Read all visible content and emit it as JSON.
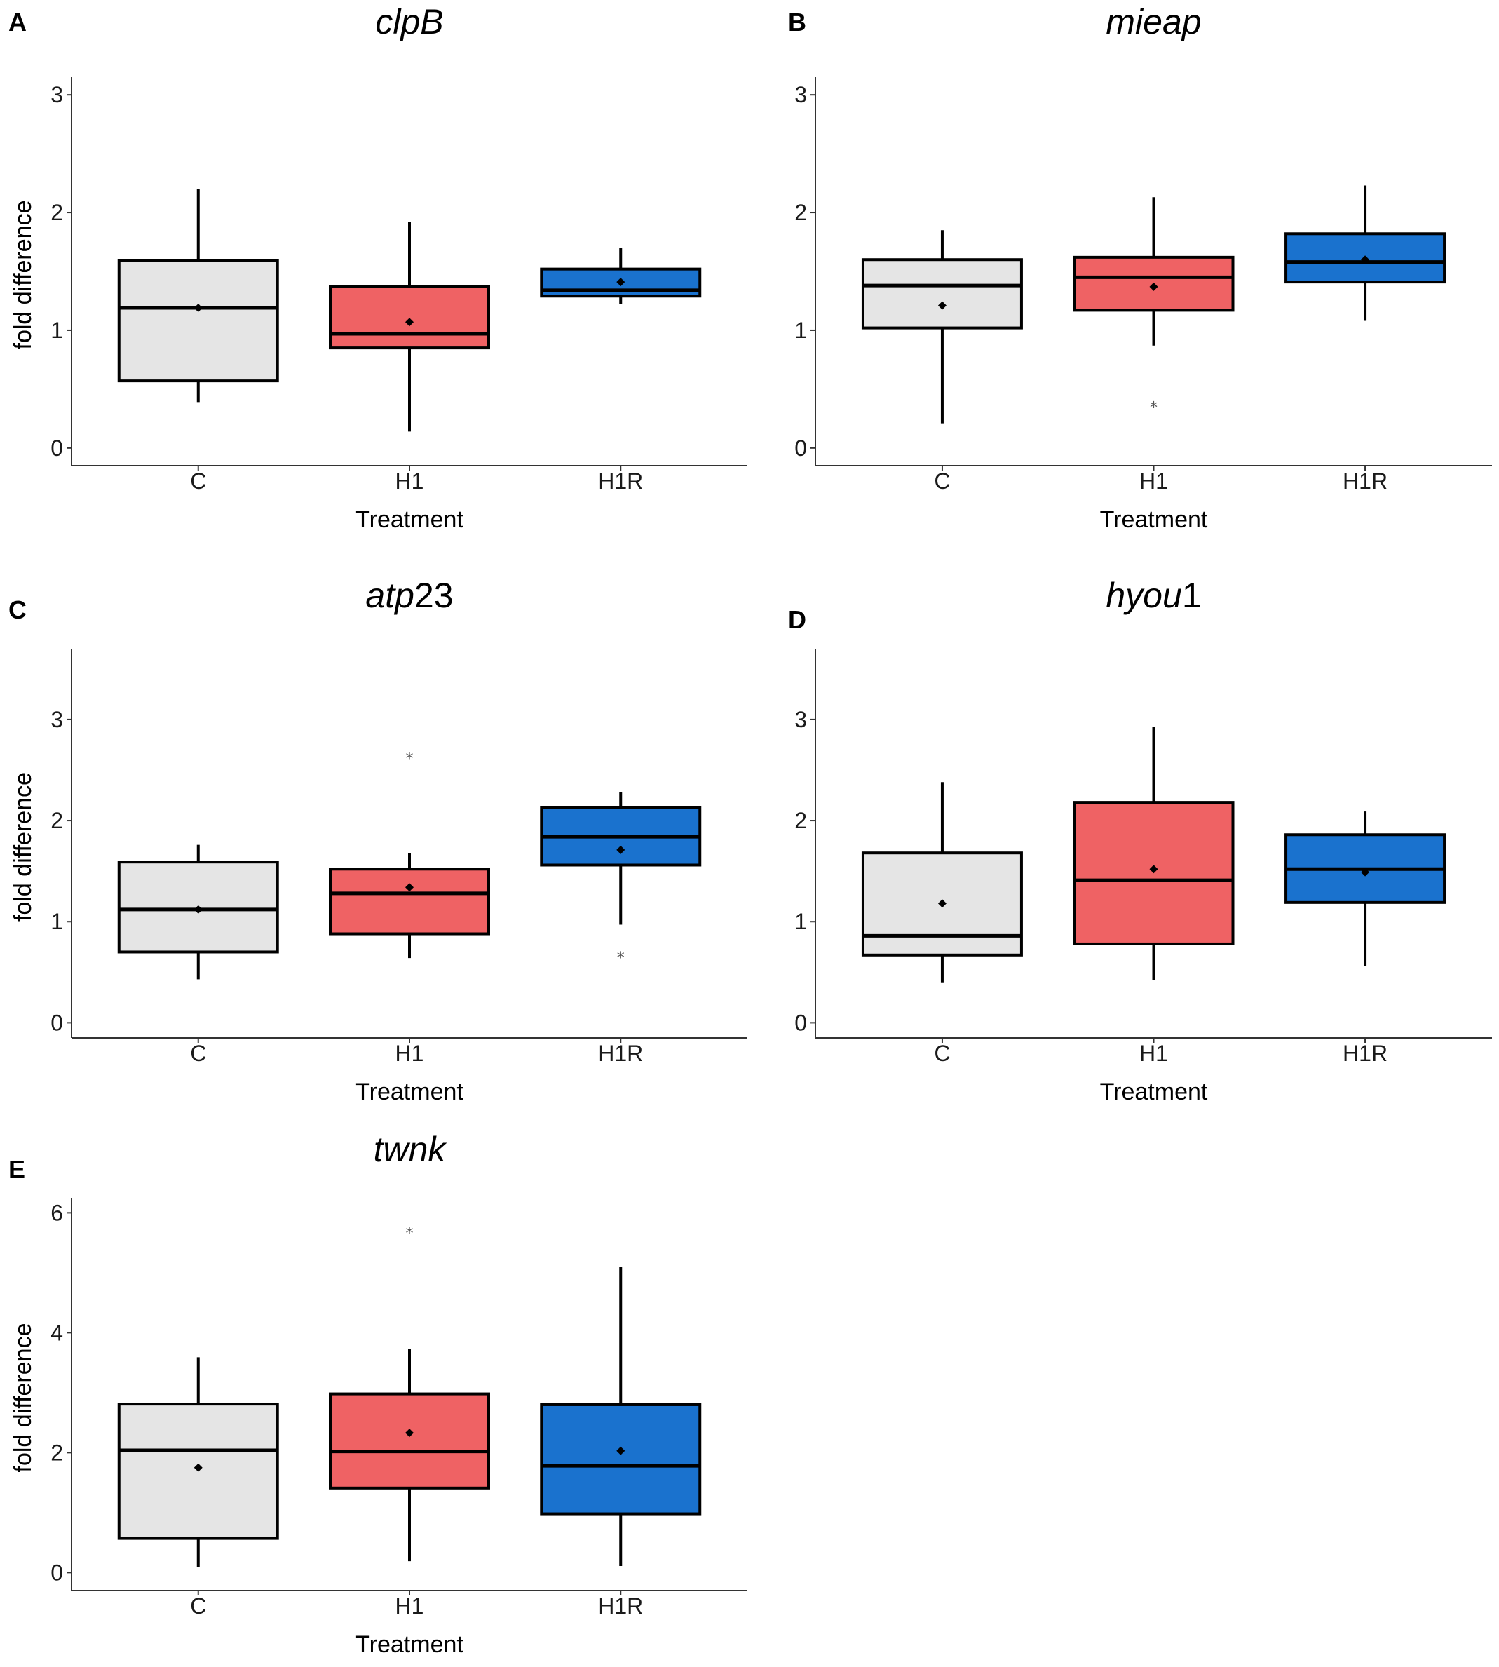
{
  "colors": {
    "C": "#e5e5e5",
    "H1": "#ef6264",
    "H1R": "#1a72ce"
  },
  "chart_data": [
    {
      "type": "boxplot",
      "panel": "A",
      "title": "clpB",
      "title_suffix": "",
      "xlabel": "Treatment",
      "ylabel": "fold difference",
      "ylim": [
        -0.15,
        3.15
      ],
      "yticks": [
        0,
        1,
        2,
        3
      ],
      "categories": [
        "C",
        "H1",
        "H1R"
      ],
      "boxes": [
        {
          "group": "C",
          "whisker_low": 0.39,
          "q1": 0.57,
          "median": 1.19,
          "q3": 1.59,
          "whisker_high": 2.2,
          "mean": 1.19,
          "outliers": []
        },
        {
          "group": "H1",
          "whisker_low": 0.14,
          "q1": 0.85,
          "median": 0.97,
          "q3": 1.37,
          "whisker_high": 1.92,
          "mean": 1.07,
          "outliers": []
        },
        {
          "group": "H1R",
          "whisker_low": 1.22,
          "q1": 1.29,
          "median": 1.34,
          "q3": 1.52,
          "whisker_high": 1.7,
          "mean": 1.41,
          "outliers": []
        }
      ]
    },
    {
      "type": "boxplot",
      "panel": "B",
      "title": "mieap",
      "title_suffix": "",
      "xlabel": "Treatment",
      "ylabel": "fold difference",
      "ylim": [
        -0.15,
        3.15
      ],
      "yticks": [
        0,
        1,
        2,
        3
      ],
      "categories": [
        "C",
        "H1",
        "H1R"
      ],
      "boxes": [
        {
          "group": "C",
          "whisker_low": 0.21,
          "q1": 1.02,
          "median": 1.38,
          "q3": 1.6,
          "whisker_high": 1.85,
          "mean": 1.21,
          "outliers": []
        },
        {
          "group": "H1",
          "whisker_low": 0.87,
          "q1": 1.17,
          "median": 1.45,
          "q3": 1.62,
          "whisker_high": 2.13,
          "mean": 1.37,
          "outliers": [
            0.36
          ]
        },
        {
          "group": "H1R",
          "whisker_low": 1.08,
          "q1": 1.41,
          "median": 1.58,
          "q3": 1.82,
          "whisker_high": 2.23,
          "mean": 1.6,
          "outliers": []
        }
      ]
    },
    {
      "type": "boxplot",
      "panel": "C",
      "title": "atp",
      "title_suffix": "23",
      "xlabel": "Treatment",
      "ylabel": "fold difference",
      "ylim": [
        -0.15,
        3.7
      ],
      "yticks": [
        0,
        1,
        2,
        3
      ],
      "categories": [
        "C",
        "H1",
        "H1R"
      ],
      "boxes": [
        {
          "group": "C",
          "whisker_low": 0.43,
          "q1": 0.7,
          "median": 1.12,
          "q3": 1.59,
          "whisker_high": 1.76,
          "mean": 1.12,
          "outliers": []
        },
        {
          "group": "H1",
          "whisker_low": 0.64,
          "q1": 0.88,
          "median": 1.28,
          "q3": 1.52,
          "whisker_high": 1.68,
          "mean": 1.34,
          "outliers": [
            2.63
          ]
        },
        {
          "group": "H1R",
          "whisker_low": 0.97,
          "q1": 1.56,
          "median": 1.84,
          "q3": 2.13,
          "whisker_high": 2.28,
          "mean": 1.71,
          "outliers": [
            0.66
          ]
        }
      ]
    },
    {
      "type": "boxplot",
      "panel": "D",
      "title": "hyou",
      "title_suffix": "1",
      "xlabel": "Treatment",
      "ylabel": "fold difference",
      "ylim": [
        -0.15,
        3.7
      ],
      "yticks": [
        0,
        1,
        2,
        3
      ],
      "categories": [
        "C",
        "H1",
        "H1R"
      ],
      "boxes": [
        {
          "group": "C",
          "whisker_low": 0.4,
          "q1": 0.67,
          "median": 0.86,
          "q3": 1.68,
          "whisker_high": 2.38,
          "mean": 1.18,
          "outliers": []
        },
        {
          "group": "H1",
          "whisker_low": 0.42,
          "q1": 0.78,
          "median": 1.41,
          "q3": 2.18,
          "whisker_high": 2.93,
          "mean": 1.52,
          "outliers": []
        },
        {
          "group": "H1R",
          "whisker_low": 0.56,
          "q1": 1.19,
          "median": 1.52,
          "q3": 1.86,
          "whisker_high": 2.09,
          "mean": 1.49,
          "outliers": []
        }
      ]
    },
    {
      "type": "boxplot",
      "panel": "E",
      "title": "twnk",
      "title_suffix": "",
      "xlabel": "Treatment",
      "ylabel": "fold difference",
      "ylim": [
        -0.3,
        6.25
      ],
      "yticks": [
        0,
        2,
        4,
        6
      ],
      "categories": [
        "C",
        "H1",
        "H1R"
      ],
      "boxes": [
        {
          "group": "C",
          "whisker_low": 0.09,
          "q1": 0.57,
          "median": 2.04,
          "q3": 2.81,
          "whisker_high": 3.59,
          "mean": 1.75,
          "outliers": []
        },
        {
          "group": "H1",
          "whisker_low": 0.19,
          "q1": 1.41,
          "median": 2.02,
          "q3": 2.98,
          "whisker_high": 3.73,
          "mean": 2.33,
          "outliers": [
            5.69
          ]
        },
        {
          "group": "H1R",
          "whisker_low": 0.11,
          "q1": 0.98,
          "median": 1.78,
          "q3": 2.8,
          "whisker_high": 5.1,
          "mean": 2.03,
          "outliers": []
        }
      ]
    }
  ]
}
